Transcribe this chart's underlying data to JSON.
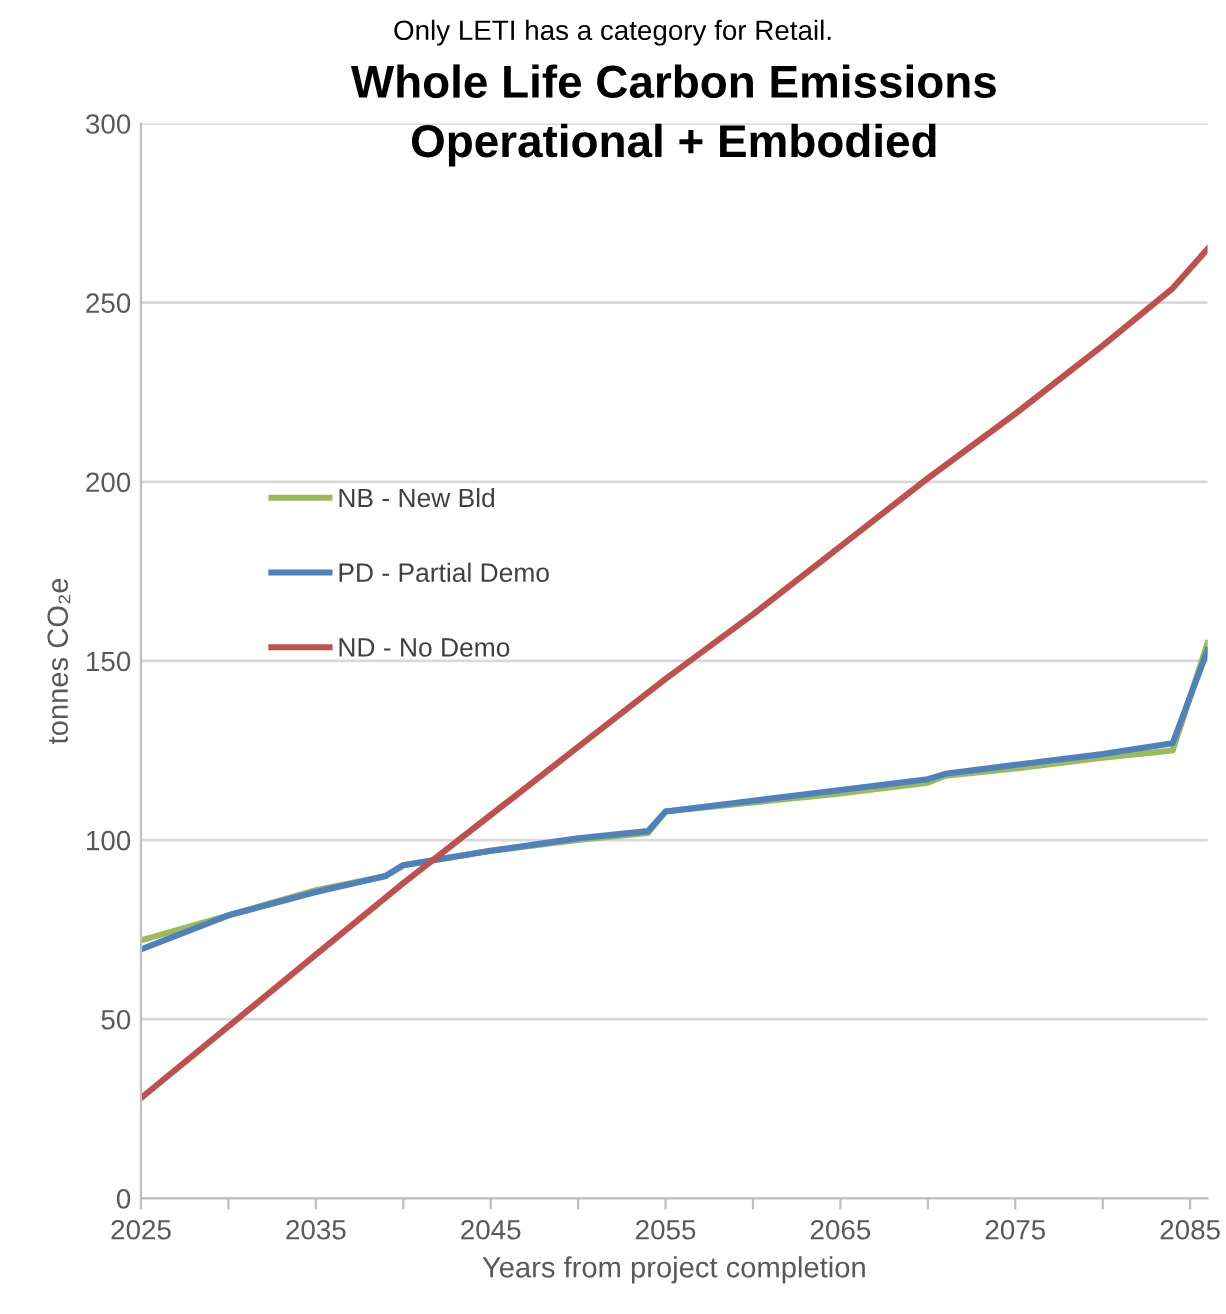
{
  "chart_data": {
    "type": "line",
    "title": "Whole Life Carbon Emissions\nOperational + Embodied",
    "xlabel": "Years from project completion",
    "ylabel": "tonnes CO₂e",
    "annotations": [
      "Only LETI has a category for Retail."
    ],
    "x": [
      2025,
      2030,
      2035,
      2039,
      2040,
      2045,
      2050,
      2054,
      2055,
      2060,
      2065,
      2070,
      2071,
      2075,
      2080,
      2084,
      2086
    ],
    "series": [
      {
        "name": "NB - New Bld",
        "color": "#9bbb59",
        "values": [
          72,
          79,
          86,
          90,
          93,
          97,
          100,
          102,
          108,
          110.5,
          113,
          116,
          118,
          120,
          123,
          125,
          155
        ]
      },
      {
        "name": "PD - Partial Demo",
        "color": "#4f81bd",
        "values": [
          69.5,
          79,
          85.5,
          90,
          93,
          97,
          100.5,
          102.5,
          108,
          111,
          114,
          117,
          118.5,
          121,
          124,
          127,
          153
        ]
      },
      {
        "name": "ND - No Demo",
        "color": "#c0504d",
        "x": [
          2025,
          2030,
          2035,
          2040,
          2045,
          2050,
          2055,
          2060,
          2065,
          2070,
          2075,
          2080,
          2084,
          2086
        ],
        "values": [
          28,
          48,
          68,
          88,
          107,
          126,
          145,
          163,
          182,
          201,
          219,
          238,
          254,
          265
        ]
      }
    ],
    "xlim": [
      2025,
      2086
    ],
    "ylim": [
      0,
      300
    ],
    "xticks": [
      2025,
      {
        "value": 2030,
        "label": null
      },
      2035,
      {
        "value": 2040,
        "label": null
      },
      2045,
      {
        "value": 2050,
        "label": null
      },
      2055,
      {
        "value": 2060,
        "label": null
      },
      2065,
      {
        "value": 2070,
        "label": null
      },
      2075,
      {
        "value": 2080,
        "label": null
      },
      2085
    ],
    "yticks": [
      0,
      50,
      100,
      150,
      200,
      250,
      300
    ],
    "grid": "y",
    "legend": "left",
    "marker": "none",
    "line_style": "solid"
  }
}
